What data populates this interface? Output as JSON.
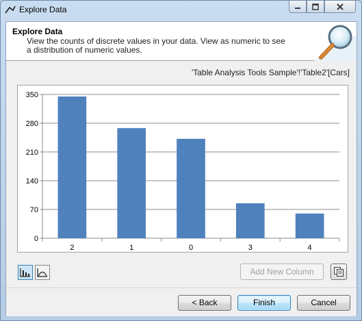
{
  "window": {
    "title": "Explore Data",
    "min_icon": "minimize-icon",
    "max_icon": "maximize-icon",
    "close_icon": "close-icon"
  },
  "header": {
    "title": "Explore Data",
    "description": "View the counts of discrete values in your data.  View as numeric to see a distribution of numeric values.",
    "icon": "magnifier-icon"
  },
  "source": "'Table Analysis Tools Sample'!'Table2'[Cars]",
  "chart_data": {
    "type": "bar",
    "categories": [
      "2",
      "1",
      "0",
      "3",
      "4"
    ],
    "values": [
      345,
      268,
      242,
      85,
      60
    ],
    "yticks": [
      0,
      70,
      140,
      210,
      280,
      350
    ],
    "ylim": [
      0,
      350
    ],
    "grid": true,
    "bar_color": "#4f81bd"
  },
  "toolbar": {
    "column_view_icon": "column-chart-icon",
    "numeric_view_icon": "area-chart-icon",
    "add_new_column": "Add New Column",
    "copy_icon": "copy-icon"
  },
  "footer": {
    "back": "< Back",
    "finish": "Finish",
    "cancel": "Cancel"
  }
}
